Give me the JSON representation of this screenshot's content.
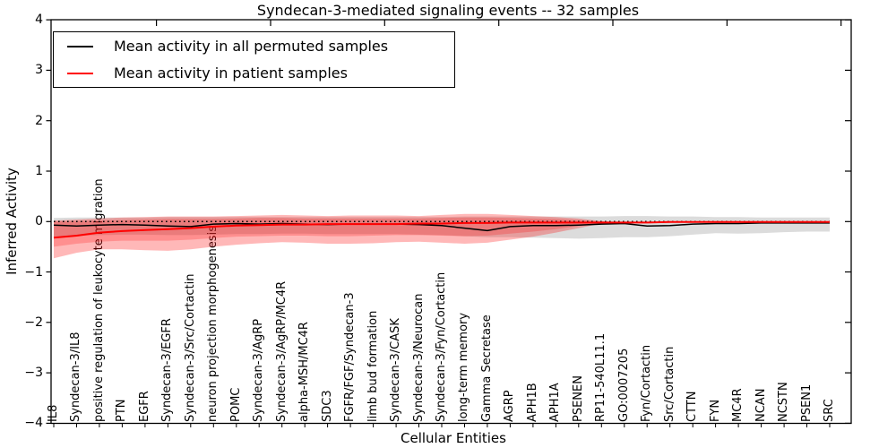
{
  "title": "Syndecan-3-mediated signaling events -- 32 samples",
  "axes": {
    "xlabel": "Cellular Entities",
    "ylabel": "Inferred Activity",
    "ytick_labels": [
      "4",
      "3",
      "2",
      "1",
      "0",
      "−1",
      "−2",
      "−3",
      "−4"
    ],
    "ytick_values": [
      4,
      3,
      2,
      1,
      0,
      -1,
      -2,
      -3,
      -4
    ],
    "ylim": [
      -4,
      4
    ]
  },
  "legend": [
    {
      "label": "Mean activity in all permuted samples",
      "color": "#000000"
    },
    {
      "label": "Mean activity in patient samples",
      "color": "#ff0000"
    }
  ],
  "chart_data": {
    "type": "line",
    "title": "Syndecan-3-mediated signaling events -- 32 samples",
    "xlabel": "Cellular Entities",
    "ylabel": "Inferred Activity",
    "ylim": [
      -4,
      4
    ],
    "grid": false,
    "legend_position": "upper left",
    "reference_line": {
      "y": 0,
      "style": "dotted",
      "color": "#000000"
    },
    "categories": [
      "IL8",
      "Syndecan-3/IL8",
      "positive regulation of leukocyte migration",
      "PTN",
      "EGFR",
      "Syndecan-3/EGFR",
      "Syndecan-3/Src/Cortactin",
      "neuron projection morphogenesis",
      "POMC",
      "Syndecan-3/AgRP",
      "Syndecan-3/AgRP/MC4R",
      "alpha-MSH/MC4R",
      "SDC3",
      "FGFR/FGF/Syndecan-3",
      "limb bud formation",
      "Syndecan-3/CASK",
      "Syndecan-3/Neurocan",
      "Syndecan-3/Fyn/Cortactin",
      "long-term memory",
      "Gamma Secretase",
      "AGRP",
      "APH1B",
      "APH1A",
      "PSENEN",
      "RP11-540L11.1",
      "GO:0007205",
      "Fyn/Cortactin",
      "Src/Cortactin",
      "CTTN",
      "FYN",
      "MC4R",
      "NCAN",
      "NCSTN",
      "PSEN1",
      "SRC"
    ],
    "series": [
      {
        "name": "Mean activity in all permuted samples",
        "color": "#000000",
        "width": 1.5,
        "values": [
          -0.07,
          -0.09,
          -0.07,
          -0.06,
          -0.07,
          -0.09,
          -0.1,
          -0.05,
          -0.04,
          -0.05,
          -0.04,
          -0.05,
          -0.06,
          -0.05,
          -0.05,
          -0.05,
          -0.06,
          -0.08,
          -0.13,
          -0.18,
          -0.1,
          -0.08,
          -0.08,
          -0.07,
          -0.05,
          -0.04,
          -0.09,
          -0.08,
          -0.05,
          -0.04,
          -0.04,
          -0.03,
          -0.03,
          -0.03,
          -0.03
        ]
      },
      {
        "name": "Mean activity in patient samples",
        "color": "#ff0000",
        "width": 2,
        "values": [
          -0.32,
          -0.28,
          -0.22,
          -0.19,
          -0.17,
          -0.15,
          -0.13,
          -0.1,
          -0.08,
          -0.07,
          -0.06,
          -0.06,
          -0.05,
          -0.05,
          -0.05,
          -0.05,
          -0.04,
          -0.04,
          -0.03,
          -0.03,
          -0.02,
          -0.02,
          -0.02,
          -0.02,
          -0.02,
          -0.02,
          -0.02,
          -0.01,
          -0.01,
          -0.01,
          -0.01,
          -0.01,
          -0.01,
          -0.01,
          -0.01
        ]
      }
    ],
    "bands": [
      {
        "name": "permuted-samples-range",
        "color": "rgba(128,128,128,0.28)",
        "low": [
          -0.3,
          -0.28,
          -0.27,
          -0.26,
          -0.26,
          -0.27,
          -0.27,
          -0.26,
          -0.25,
          -0.25,
          -0.24,
          -0.24,
          -0.25,
          -0.25,
          -0.25,
          -0.25,
          -0.26,
          -0.27,
          -0.29,
          -0.31,
          -0.31,
          -0.32,
          -0.33,
          -0.34,
          -0.33,
          -0.31,
          -0.31,
          -0.29,
          -0.26,
          -0.23,
          -0.24,
          -0.23,
          -0.21,
          -0.2,
          -0.2
        ],
        "high": [
          0.07,
          0.08,
          0.08,
          0.08,
          0.08,
          0.09,
          0.09,
          0.09,
          0.09,
          0.09,
          0.09,
          0.09,
          0.09,
          0.09,
          0.09,
          0.09,
          0.09,
          0.09,
          0.1,
          0.1,
          0.1,
          0.1,
          0.1,
          0.1,
          0.1,
          0.11,
          0.11,
          0.1,
          0.1,
          0.09,
          0.09,
          0.08,
          0.08,
          0.08,
          0.08
        ]
      },
      {
        "name": "patient-samples-outer-range",
        "color": "rgba(255,0,0,0.28)",
        "low": [
          -0.73,
          -0.62,
          -0.55,
          -0.55,
          -0.57,
          -0.58,
          -0.55,
          -0.5,
          -0.46,
          -0.43,
          -0.41,
          -0.42,
          -0.44,
          -0.44,
          -0.43,
          -0.41,
          -0.4,
          -0.42,
          -0.44,
          -0.42,
          -0.36,
          -0.3,
          -0.22,
          -0.13,
          -0.04,
          -0.02,
          -0.02,
          -0.01,
          -0.01,
          -0.01,
          -0.01,
          -0.01,
          -0.01,
          -0.01,
          -0.01
        ],
        "high": [
          0.02,
          0.04,
          0.06,
          0.08,
          0.09,
          0.1,
          0.1,
          0.1,
          0.11,
          0.12,
          0.13,
          0.12,
          0.11,
          0.12,
          0.12,
          0.12,
          0.11,
          0.13,
          0.15,
          0.15,
          0.13,
          0.11,
          0.09,
          0.06,
          0.01,
          -0.02,
          -0.02,
          -0.01,
          -0.01,
          -0.01,
          -0.01,
          -0.01,
          -0.01,
          -0.01,
          -0.01
        ]
      },
      {
        "name": "patient-samples-inner-range",
        "color": "rgba(255,0,0,0.22)",
        "low": [
          -0.5,
          -0.44,
          -0.4,
          -0.38,
          -0.38,
          -0.38,
          -0.36,
          -0.33,
          -0.3,
          -0.29,
          -0.28,
          -0.28,
          -0.29,
          -0.29,
          -0.28,
          -0.27,
          -0.27,
          -0.28,
          -0.29,
          -0.28,
          -0.24,
          -0.2,
          -0.15,
          -0.09,
          -0.03,
          -0.02,
          -0.02,
          -0.01,
          -0.01,
          -0.01,
          -0.01,
          -0.01,
          -0.01,
          -0.01,
          -0.01
        ],
        "high": [
          0.0,
          0.01,
          0.02,
          0.03,
          0.04,
          0.05,
          0.05,
          0.05,
          0.06,
          0.07,
          0.07,
          0.06,
          0.06,
          0.06,
          0.06,
          0.06,
          0.06,
          0.07,
          0.08,
          0.08,
          0.07,
          0.06,
          0.05,
          0.03,
          0.0,
          -0.02,
          -0.02,
          -0.01,
          -0.01,
          -0.01,
          -0.01,
          -0.01,
          -0.01,
          -0.01,
          -0.01
        ]
      }
    ]
  },
  "colors": {
    "frame": "#000000",
    "background": "#ffffff"
  }
}
